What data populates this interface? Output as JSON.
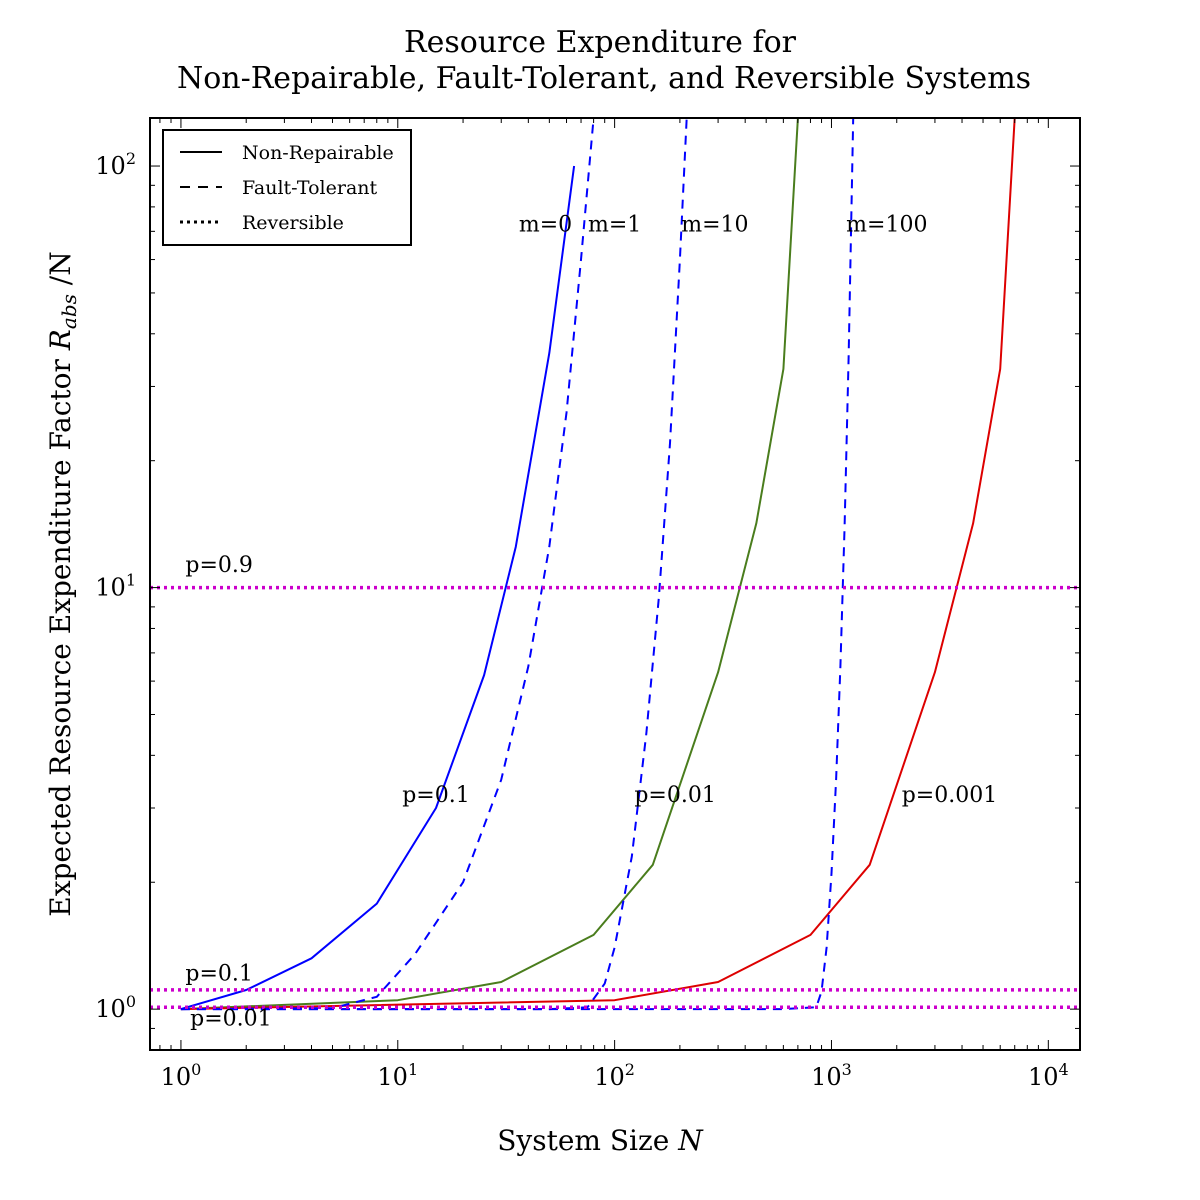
{
  "chart_data": {
    "type": "line",
    "title_lines": [
      "Resource Expenditure for",
      "Non-Repairable, Fault-Tolerant, and Reversible Systems"
    ],
    "xlabel": "System Size ",
    "xlabel_var": "N",
    "ylabel": "Expected Resource Expenditure Factor ",
    "ylabel_var": "R",
    "ylabel_sub": "abs",
    "ylabel_suffix": " /N",
    "x_scale": "log",
    "y_scale": "log",
    "xlim": [
      0.72,
      14000
    ],
    "ylim": [
      0.8,
      130
    ],
    "x_ticks": [
      {
        "value": 1,
        "base": "10",
        "exp": "0"
      },
      {
        "value": 10,
        "base": "10",
        "exp": "1"
      },
      {
        "value": 100,
        "base": "10",
        "exp": "2"
      },
      {
        "value": 1000,
        "base": "10",
        "exp": "3"
      },
      {
        "value": 10000,
        "base": "10",
        "exp": "4"
      }
    ],
    "y_ticks": [
      {
        "value": 1,
        "base": "10",
        "exp": "0"
      },
      {
        "value": 10,
        "base": "10",
        "exp": "1"
      },
      {
        "value": 100,
        "base": "10",
        "exp": "2"
      }
    ],
    "grid": false,
    "legend_position": "top-left",
    "legend": [
      {
        "label": "Non-Repairable",
        "style": "solid"
      },
      {
        "label": "Fault-Tolerant",
        "style": "dashed"
      },
      {
        "label": "Reversible",
        "style": "dotted"
      }
    ],
    "colors": {
      "p01": "#0000ff",
      "p001": "#4a7d1d",
      "p0001": "#dd0000",
      "reversible": "#cc00cc"
    },
    "series": [
      {
        "style": "solid",
        "color": "#0000ff",
        "x": [
          1,
          2,
          4,
          8,
          15,
          25,
          35,
          50,
          65
        ],
        "y": [
          1,
          1.11,
          1.32,
          1.78,
          3.0,
          6.2,
          12.5,
          36,
          100
        ]
      },
      {
        "style": "solid",
        "color": "#4a7d1d",
        "x": [
          1,
          10,
          30,
          80,
          150,
          300,
          450,
          600,
          700
        ],
        "y": [
          1,
          1.05,
          1.16,
          1.5,
          2.2,
          6.3,
          14.2,
          33,
          130
        ]
      },
      {
        "style": "solid",
        "color": "#dd0000",
        "x": [
          1,
          100,
          300,
          800,
          1500,
          3000,
          4500,
          6000,
          7000
        ],
        "y": [
          1,
          1.05,
          1.16,
          1.5,
          2.2,
          6.3,
          14.2,
          33,
          130
        ]
      },
      {
        "style": "dashed",
        "color": "#0000ff",
        "x": [
          1,
          5,
          8,
          12,
          20,
          30,
          40,
          50,
          60,
          70,
          80
        ],
        "y": [
          1,
          1.005,
          1.07,
          1.35,
          2.0,
          3.5,
          6.5,
          12.5,
          26,
          60,
          130
        ]
      },
      {
        "style": "dashed",
        "color": "#0000ff",
        "x": [
          1,
          50,
          75,
          90,
          100,
          120,
          140,
          160,
          180,
          200,
          215
        ],
        "y": [
          1,
          1.0,
          1.01,
          1.15,
          1.4,
          2.3,
          4.5,
          9.5,
          22,
          60,
          130
        ]
      },
      {
        "style": "dashed",
        "color": "#0000ff",
        "x": [
          1,
          600,
          850,
          900,
          950,
          1000,
          1050,
          1100,
          1150,
          1200,
          1260
        ],
        "y": [
          1,
          1.0,
          1.01,
          1.1,
          1.4,
          2.1,
          3.5,
          6.5,
          14,
          35,
          130
        ]
      },
      {
        "style": "dotted",
        "color": "#cc00cc",
        "label": "p=0.9",
        "y": 10
      },
      {
        "style": "dotted",
        "color": "#cc00cc",
        "label": "p=0.1",
        "y": 1.111
      },
      {
        "style": "dotted",
        "color": "#cc00cc",
        "label": "p=0.01",
        "y": 1.0101
      }
    ],
    "annotations": [
      {
        "text": "m=0",
        "x": 48,
        "y": 70
      },
      {
        "text": "m=1",
        "x": 100,
        "y": 70
      },
      {
        "text": "m=10",
        "x": 290,
        "y": 70
      },
      {
        "text": "m=100",
        "x": 1800,
        "y": 70
      },
      {
        "text": "p=0.1",
        "x": 15,
        "y": 3.1
      },
      {
        "text": "p=0.01",
        "x": 190,
        "y": 3.1
      },
      {
        "text": "p=0.001",
        "x": 3500,
        "y": 3.1
      },
      {
        "text": "p=0.9",
        "x": 1.5,
        "y": 10.9
      },
      {
        "text": "p=0.1",
        "x": 1.5,
        "y": 1.17
      },
      {
        "text": "p=0.01",
        "x": 1.7,
        "y": 0.915
      }
    ]
  }
}
